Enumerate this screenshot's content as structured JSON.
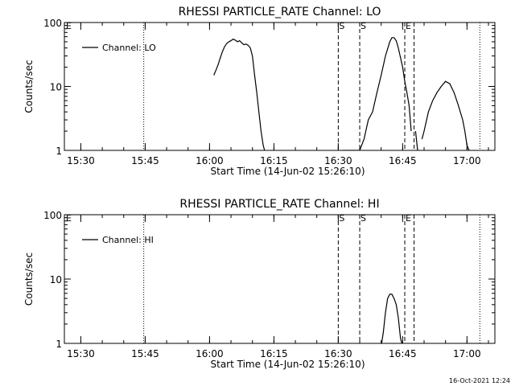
{
  "footer": {
    "timestamp": "16-Oct-2021 12:24"
  },
  "chart_data": [
    {
      "type": "line",
      "title": "RHESSI PARTICLE_RATE Channel: LO",
      "xlabel": "Start Time (14-Jun-02 15:26:10)",
      "ylabel": "Counts/sec",
      "yscale": "log",
      "ylim": [
        1,
        100
      ],
      "xlim": [
        "15:26:10",
        "17:06:30"
      ],
      "xticks": [
        "15:30",
        "15:45",
        "16:00",
        "16:15",
        "16:30",
        "16:45",
        "17:00"
      ],
      "yticks": [
        "1",
        "10",
        "100"
      ],
      "legend": {
        "position": "top-left",
        "entries": [
          "Channel: LO"
        ]
      },
      "series": [
        {
          "legend_label": "Channel: LO",
          "x": [
            "16:01",
            "16:01:30",
            "16:02",
            "16:02:30",
            "16:03",
            "16:03:30",
            "16:04",
            "16:04:30",
            "16:05",
            "16:05:30",
            "16:06",
            "16:06:30",
            "16:07",
            "16:07:30",
            "16:08",
            "16:08:30",
            "16:09",
            "16:09:30",
            "16:10",
            "16:10:30",
            "16:11",
            "16:11:30",
            "16:12",
            "16:12:30",
            "16:13",
            null,
            "16:31",
            "16:34",
            "16:35",
            "16:36",
            "16:37",
            "16:38",
            "16:39",
            "16:40",
            "16:41",
            "16:42",
            "16:42:30",
            "16:43",
            "16:43:30",
            "16:44",
            "16:45",
            "16:45:30",
            "16:46",
            "16:46:30",
            "16:47",
            null,
            "16:48",
            "16:48:30",
            null,
            "16:49:30",
            "16:50",
            "16:51",
            "16:52",
            "16:53",
            "16:54",
            "16:55",
            "16:56",
            "16:57",
            "16:58",
            "16:59",
            "16:59:30",
            "17:00",
            "17:00:30"
          ],
          "y": [
            15,
            18,
            22,
            28,
            35,
            42,
            47,
            50,
            52,
            55,
            53,
            50,
            52,
            48,
            45,
            46,
            44,
            40,
            30,
            15,
            8,
            4,
            2,
            1.2,
            0.9,
            null,
            1,
            1,
            1,
            1.5,
            3,
            4,
            8,
            15,
            30,
            50,
            58,
            58,
            52,
            40,
            20,
            12,
            8,
            5,
            2,
            null,
            2,
            1,
            null,
            1.5,
            2,
            4,
            6,
            8,
            10,
            12,
            11,
            8,
            5,
            3,
            2,
            1.2,
            1
          ]
        }
      ],
      "markers": [
        {
          "label": "E",
          "x": "15:26:10",
          "style": "label"
        },
        {
          "label": "",
          "x": "15:44:40",
          "style": "dotted"
        },
        {
          "label": "S",
          "x": "16:30",
          "style": "dashed"
        },
        {
          "label": "S",
          "x": "16:35",
          "style": "dashed"
        },
        {
          "label": "E",
          "x": "16:45:30",
          "style": "dashed"
        },
        {
          "label": "",
          "x": "16:47:40",
          "style": "dashed"
        },
        {
          "label": "",
          "x": "17:03:00",
          "style": "dotted"
        }
      ]
    },
    {
      "type": "line",
      "title": "RHESSI PARTICLE_RATE Channel: HI",
      "xlabel": "Start Time (14-Jun-02 15:26:10)",
      "ylabel": "Counts/sec",
      "yscale": "log",
      "ylim": [
        1,
        100
      ],
      "xlim": [
        "15:26:10",
        "17:06:30"
      ],
      "xticks": [
        "15:30",
        "15:45",
        "16:00",
        "16:15",
        "16:30",
        "16:45",
        "17:00"
      ],
      "yticks": [
        "1",
        "10",
        "100"
      ],
      "legend": {
        "position": "top-left",
        "entries": [
          "Channel: HI"
        ]
      },
      "series": [
        {
          "legend_label": "Channel: HI",
          "x": [
            "16:40",
            "16:40:30",
            "16:41",
            "16:41:30",
            "16:42",
            "16:42:30",
            "16:43",
            "16:43:30",
            "16:44",
            "16:44:30",
            "16:45"
          ],
          "y": [
            0.9,
            1.5,
            3,
            5,
            5.8,
            5.8,
            5,
            4,
            2.5,
            1.2,
            0.9
          ]
        }
      ],
      "markers": [
        {
          "label": "E",
          "x": "15:26:10",
          "style": "label"
        },
        {
          "label": "",
          "x": "15:44:40",
          "style": "dotted"
        },
        {
          "label": "S",
          "x": "16:30",
          "style": "dashed"
        },
        {
          "label": "S",
          "x": "16:35",
          "style": "dashed"
        },
        {
          "label": "E",
          "x": "16:45:30",
          "style": "dashed"
        },
        {
          "label": "",
          "x": "16:47:40",
          "style": "dashed"
        },
        {
          "label": "",
          "x": "17:03:00",
          "style": "dotted"
        }
      ]
    }
  ]
}
